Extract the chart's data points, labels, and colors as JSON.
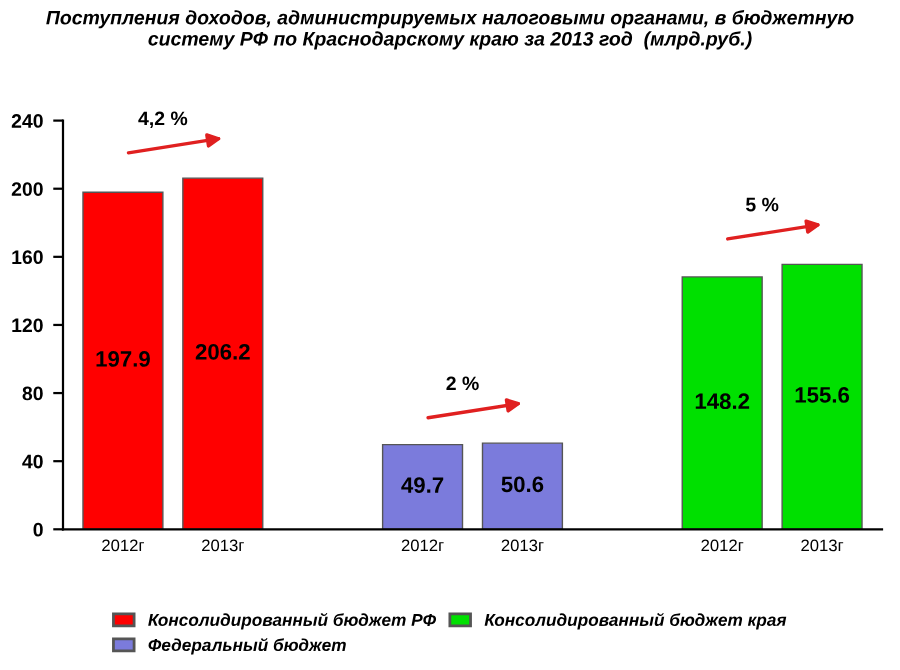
{
  "chart_data": {
    "type": "bar",
    "title": "Поступления доходов, администрируемых налоговыми органами, в бюджетную систему РФ по Краснодарскому краю за 2013 год  (млрд.руб.)",
    "categories": [
      "2012г",
      "2013г",
      null,
      "2012г",
      "2013г",
      null,
      "2012г",
      "2013г"
    ],
    "series": [
      {
        "name": "Консолидированный бюджет РФ",
        "color": "#ff0000",
        "values": [
          197.9,
          206.2,
          null,
          null,
          null,
          null,
          null,
          null
        ]
      },
      {
        "name": "Федеральный бюджет",
        "color": "#7b7bdc",
        "values": [
          null,
          null,
          null,
          49.7,
          50.6,
          null,
          null,
          null
        ]
      },
      {
        "name": "Консолидированный бюджет края",
        "color": "#00e000",
        "values": [
          null,
          null,
          null,
          null,
          null,
          null,
          148.2,
          155.6
        ]
      }
    ],
    "annotations": [
      "4,2 %",
      "2 %",
      "5 %"
    ],
    "ylim": [
      0,
      240
    ],
    "yticks": [
      0,
      40,
      80,
      120,
      160,
      200,
      240
    ],
    "data_labels": true,
    "grid": false,
    "legend": "bottom"
  }
}
